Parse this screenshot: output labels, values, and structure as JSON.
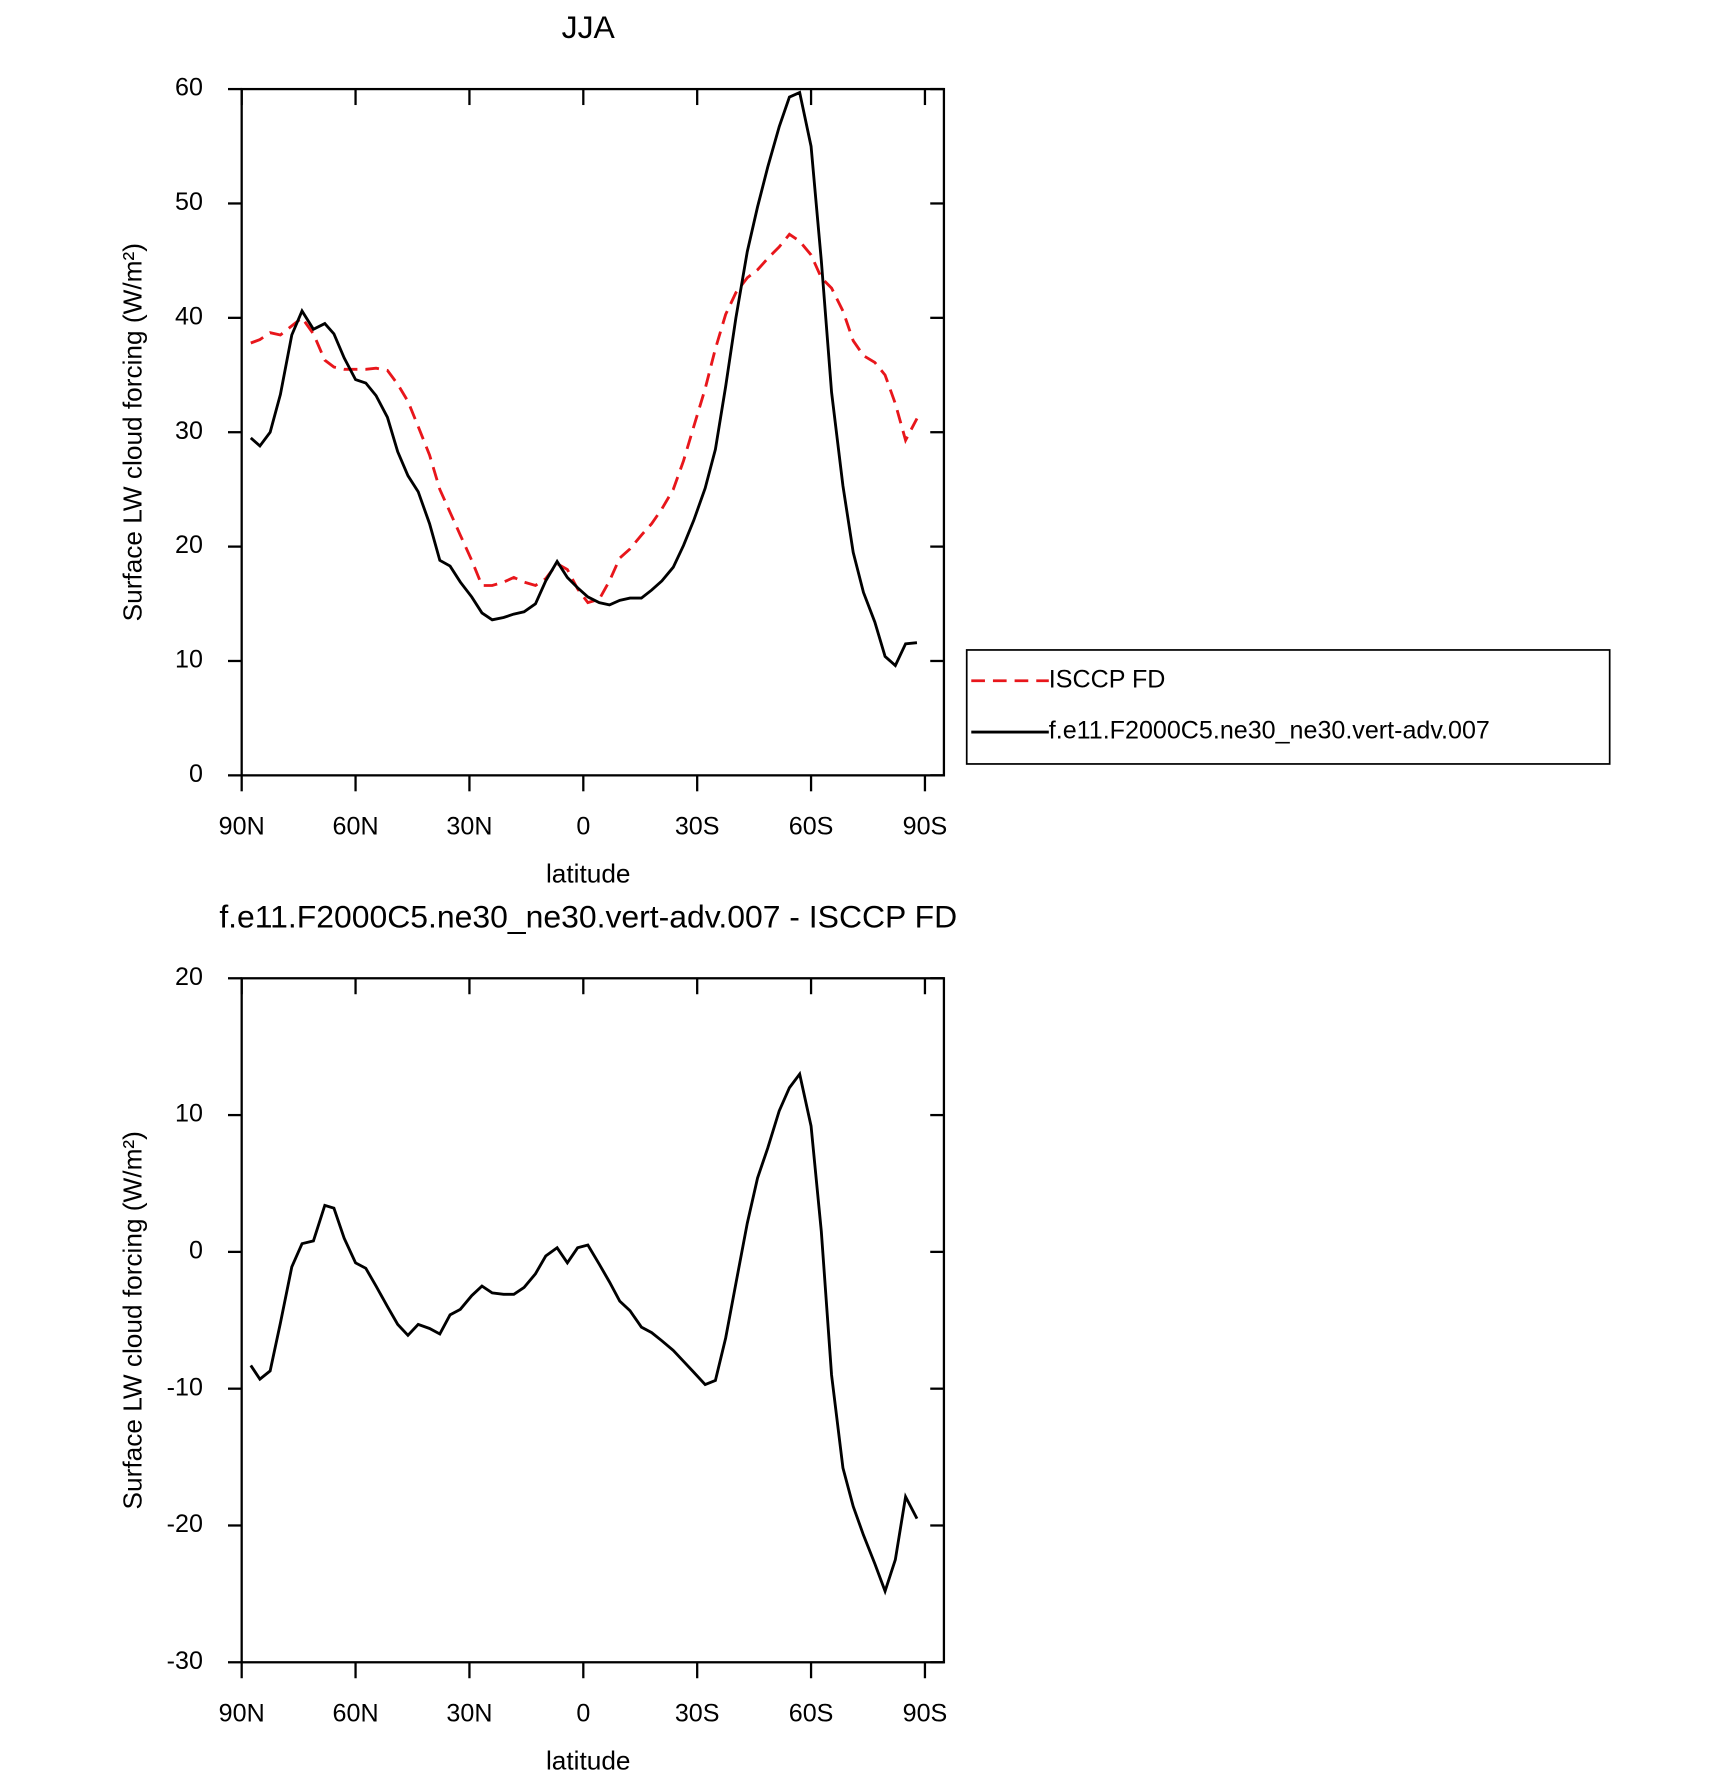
{
  "chart_data": [
    {
      "type": "line",
      "title": "JJA",
      "x_label": "latitude",
      "y_label": "Surface LW cloud forcing (W/m²)",
      "xlim": [
        90,
        -95
      ],
      "ylim": [
        0,
        60
      ],
      "xticks": [
        {
          "value": 90,
          "label": "90N"
        },
        {
          "value": 60,
          "label": "60N"
        },
        {
          "value": 30,
          "label": "30N"
        },
        0,
        {
          "value": -30,
          "label": "30S"
        },
        {
          "value": -60,
          "label": "60S"
        },
        {
          "value": -90,
          "label": "90S"
        }
      ],
      "yticks": [
        0,
        10,
        20,
        30,
        40,
        50,
        60
      ],
      "legend": "right",
      "x": [
        87.6,
        85.2,
        82.5,
        79.8,
        76.8,
        74.1,
        71.1,
        68.1,
        65.7,
        63,
        60,
        57.3,
        54.6,
        51.6,
        48.9,
        46.2,
        43.5,
        40.5,
        37.8,
        35.1,
        32.4,
        29.4,
        26.7,
        24,
        21,
        18.3,
        15.6,
        12.6,
        9.9,
        6.9,
        4.2,
        1.5,
        -1.2,
        -4.2,
        -6.9,
        -9.6,
        -12.3,
        -15.3,
        -18,
        -20.7,
        -23.7,
        -26.4,
        -29.1,
        -32.1,
        -34.8,
        -37.5,
        -40.2,
        -43.2,
        -45.9,
        -48.6,
        -51.6,
        -54.3,
        -57,
        -60,
        -62.7,
        -65.4,
        -68.4,
        -71.1,
        -73.8,
        -76.8,
        -79.5,
        -82.2,
        -84.9,
        -87.9
      ],
      "series": [
        {
          "name": "ISCCP FD",
          "color": "#e8161b",
          "dashed": true,
          "values": [
            37.8,
            38.1,
            38.7,
            38.5,
            39.3,
            40,
            38.6,
            36.3,
            35.7,
            35.5,
            35.5,
            35.5,
            35.6,
            35.4,
            34.2,
            32.7,
            30.5,
            28,
            25,
            23,
            21,
            18.8,
            16.6,
            16.6,
            16.9,
            17.3,
            16.9,
            16.6,
            17.2,
            18.5,
            18,
            16.3,
            15.1,
            15.4,
            17,
            19,
            19.8,
            21,
            22,
            23.3,
            25,
            27.5,
            30.5,
            33.8,
            37.3,
            40.3,
            42.2,
            43.5,
            44.2,
            45.2,
            46.2,
            47.3,
            46.7,
            45.5,
            43.5,
            42.6,
            40.6,
            38,
            36.7,
            36.1,
            35,
            32.5,
            29.3,
            31.2
          ]
        },
        {
          "name": "f.e11.F2000C5.ne30_ne30.vert-adv.007",
          "color": "#000000",
          "dashed": false,
          "values": [
            29.5,
            28.8,
            30,
            33.3,
            38.5,
            40.6,
            39,
            39.5,
            38.6,
            36.5,
            34.6,
            34.3,
            33.2,
            31.3,
            28.3,
            26.2,
            24.8,
            22,
            18.8,
            18.3,
            16.9,
            15.6,
            14.2,
            13.6,
            13.8,
            14.1,
            14.3,
            15,
            17,
            18.7,
            17.3,
            16.4,
            15.6,
            15.1,
            14.9,
            15.3,
            15.5,
            15.5,
            16.2,
            17,
            18.2,
            20.1,
            22.3,
            25.1,
            28.5,
            34,
            40,
            45.8,
            49.7,
            53.2,
            56.7,
            59.3,
            59.7,
            55,
            45,
            33.5,
            25.3,
            19.5,
            16,
            13.4,
            10.4,
            9.6,
            11.5,
            11.6
          ]
        }
      ]
    },
    {
      "type": "line",
      "title": "f.e11.F2000C5.ne30_ne30.vert-adv.007 - ISCCP FD",
      "x_label": "latitude",
      "y_label": "Surface LW cloud forcing (W/m²)",
      "xlim": [
        90,
        -95
      ],
      "ylim": [
        -30,
        20
      ],
      "xticks": [
        {
          "value": 90,
          "label": "90N"
        },
        {
          "value": 60,
          "label": "60N"
        },
        {
          "value": 30,
          "label": "30N"
        },
        0,
        {
          "value": -30,
          "label": "30S"
        },
        {
          "value": -60,
          "label": "60S"
        },
        {
          "value": -90,
          "label": "90S"
        }
      ],
      "yticks": [
        -30,
        -20,
        -10,
        0,
        10,
        20
      ],
      "x": [
        87.6,
        85.2,
        82.5,
        79.8,
        76.8,
        74.1,
        71.1,
        68.1,
        65.7,
        63,
        60,
        57.3,
        54.6,
        51.6,
        48.9,
        46.2,
        43.5,
        40.5,
        37.8,
        35.1,
        32.4,
        29.4,
        26.7,
        24,
        21,
        18.3,
        15.6,
        12.6,
        9.9,
        6.9,
        4.2,
        1.5,
        -1.2,
        -4.2,
        -6.9,
        -9.6,
        -12.3,
        -15.3,
        -18,
        -20.7,
        -23.7,
        -26.4,
        -29.1,
        -32.1,
        -34.8,
        -37.5,
        -40.2,
        -43.2,
        -45.9,
        -48.6,
        -51.6,
        -54.3,
        -57,
        -60,
        -62.7,
        -65.4,
        -68.4,
        -71.1,
        -73.8,
        -76.8,
        -79.5,
        -82.2,
        -84.9,
        -87.9
      ],
      "series": [
        {
          "color": "#000000",
          "dashed": false,
          "values": [
            -8.3,
            -9.3,
            -8.7,
            -5.2,
            -1.1,
            0.6,
            0.8,
            3.4,
            3.2,
            1,
            -0.8,
            -1.2,
            -2.5,
            -4,
            -5.3,
            -6.1,
            -5.3,
            -5.6,
            -6,
            -4.6,
            -4.2,
            -3.2,
            -2.5,
            -3,
            -3.1,
            -3.1,
            -2.6,
            -1.6,
            -0.3,
            0.3,
            -0.8,
            0.3,
            0.5,
            -0.9,
            -2.2,
            -3.6,
            -4.3,
            -5.5,
            -5.9,
            -6.5,
            -7.2,
            -8,
            -8.8,
            -9.7,
            -9.4,
            -6.3,
            -2.3,
            2.1,
            5.4,
            7.6,
            10.3,
            12,
            13,
            9.2,
            1.5,
            -9,
            -15.8,
            -18.6,
            -20.7,
            -22.8,
            -24.8,
            -22.5,
            -17.9,
            -19.5
          ]
        }
      ]
    }
  ]
}
